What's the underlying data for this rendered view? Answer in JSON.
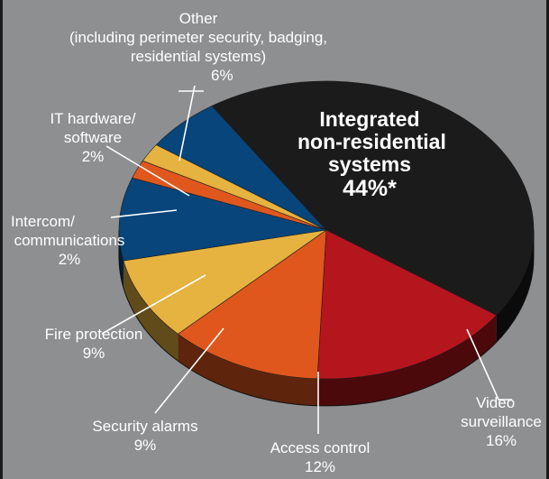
{
  "chart_data": {
    "type": "pie",
    "title": "",
    "slices": [
      {
        "label": "Integrated non-residential systems",
        "value": 44,
        "display": "44%*",
        "color": "#1b1b1b"
      },
      {
        "label": "Video surveillance",
        "value": 16,
        "display": "16%",
        "color": "#b5151c"
      },
      {
        "label": "Access control",
        "value": 12,
        "display": "12%",
        "color": "#e0571d"
      },
      {
        "label": "Security alarms",
        "value": 9,
        "display": "9%",
        "color": "#e6b240"
      },
      {
        "label": "Fire protection",
        "value": 9,
        "display": "9%",
        "color": "#07457a"
      },
      {
        "label": "Intercom/ communications",
        "value": 2,
        "display": "2%",
        "color": "#e0571d"
      },
      {
        "label": "IT hardware/ software",
        "value": 2,
        "display": "2%",
        "color": "#e6b240"
      },
      {
        "label": "Other (including perimeter security, badging, residential systems)",
        "value": 6,
        "display": "6%",
        "color": "#07457a"
      }
    ]
  },
  "labels": {
    "integrated": {
      "line1": "Integrated",
      "line2": "non-residential",
      "line3": "systems",
      "pct": "44%*"
    },
    "video": {
      "line1": "Video",
      "line2": "surveillance",
      "pct": "16%"
    },
    "access": {
      "line1": "Access control",
      "pct": "12%"
    },
    "alarms": {
      "line1": "Security alarms",
      "pct": "9%"
    },
    "fire": {
      "line1": "Fire protection",
      "pct": "9%"
    },
    "intercom": {
      "line1": "Intercom/",
      "line2": "communications",
      "pct": "2%"
    },
    "it": {
      "line1": "IT hardware/",
      "line2": "software",
      "pct": "2%"
    },
    "other": {
      "line1": "Other",
      "line2": "(including perimeter security, badging,",
      "line3": "residential systems)",
      "pct": "6%"
    }
  },
  "colors": {
    "background": "#8e8f91",
    "text": "#ffffff",
    "leader": "#ffffff"
  }
}
